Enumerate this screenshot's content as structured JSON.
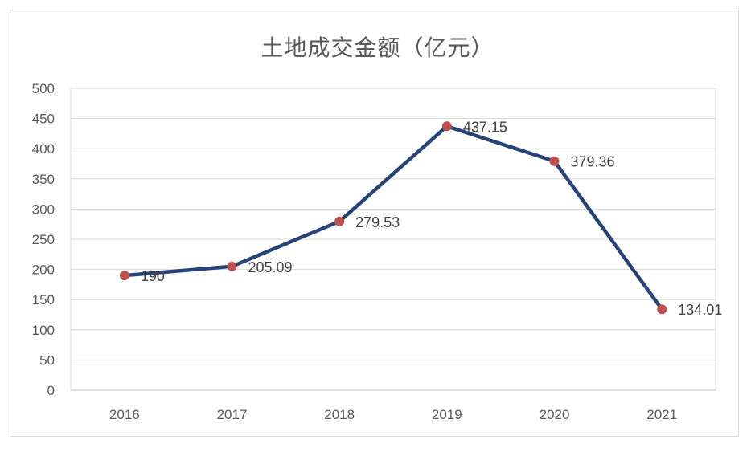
{
  "chart_data": {
    "type": "line",
    "title": "土地成交金额（亿元）",
    "categories": [
      "2016",
      "2017",
      "2018",
      "2019",
      "2020",
      "2021"
    ],
    "series": [
      {
        "values": [
          190,
          205.09,
          279.53,
          437.15,
          379.36,
          134.01
        ]
      }
    ],
    "data_labels": [
      "190",
      "205.09",
      "279.53",
      "437.15",
      "379.36",
      "134.01"
    ],
    "ylim": [
      0,
      500
    ],
    "yticks": [
      0,
      50,
      100,
      150,
      200,
      250,
      300,
      350,
      400,
      450,
      500
    ],
    "grid": true,
    "line_color": "#264478",
    "marker_color": "#c0504d"
  }
}
